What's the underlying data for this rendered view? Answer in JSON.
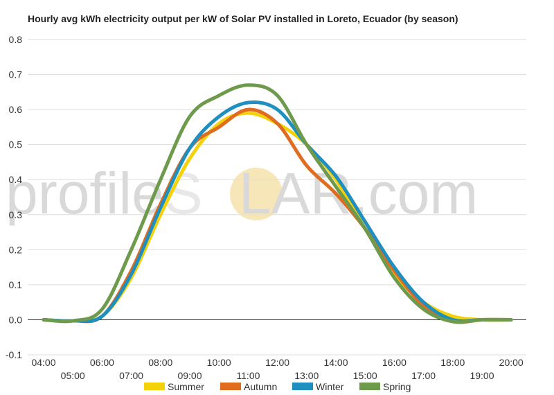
{
  "chart_data": {
    "type": "line",
    "title": "Hourly avg kWh electricity output per kW of Solar PV installed in Loreto, Ecuador (by season)",
    "xlabel": "",
    "ylabel": "",
    "ylim": [
      -0.1,
      0.8
    ],
    "yticks": [
      "-0.1",
      "0.0",
      "0.1",
      "0.2",
      "0.3",
      "0.4",
      "0.5",
      "0.6",
      "0.7",
      "0.8"
    ],
    "x": [
      "04:00",
      "05:00",
      "06:00",
      "07:00",
      "08:00",
      "09:00",
      "10:00",
      "11:00",
      "12:00",
      "13:00",
      "14:00",
      "15:00",
      "16:00",
      "17:00",
      "18:00",
      "19:00",
      "20:00"
    ],
    "grid": true,
    "legend_position": "bottom",
    "series": [
      {
        "name": "Summer",
        "color": "#f5d10a",
        "values": [
          0.0,
          -0.003,
          0.01,
          0.12,
          0.3,
          0.46,
          0.56,
          0.59,
          0.56,
          0.5,
          0.4,
          0.26,
          0.13,
          0.05,
          0.01,
          0.0,
          0.0
        ]
      },
      {
        "name": "Autumn",
        "color": "#e06c1f",
        "values": [
          0.0,
          -0.003,
          0.01,
          0.14,
          0.33,
          0.49,
          0.55,
          0.6,
          0.56,
          0.44,
          0.36,
          0.26,
          0.14,
          0.04,
          -0.005,
          0.0,
          0.0
        ]
      },
      {
        "name": "Winter",
        "color": "#1f8fbf",
        "values": [
          0.0,
          -0.003,
          0.01,
          0.13,
          0.32,
          0.49,
          0.58,
          0.62,
          0.6,
          0.5,
          0.41,
          0.28,
          0.15,
          0.05,
          0.0,
          0.0,
          0.0
        ]
      },
      {
        "name": "Spring",
        "color": "#6e9a4c",
        "values": [
          0.0,
          -0.003,
          0.03,
          0.2,
          0.4,
          0.58,
          0.64,
          0.67,
          0.64,
          0.5,
          0.38,
          0.26,
          0.12,
          0.03,
          -0.005,
          0.0,
          0.0
        ]
      }
    ]
  },
  "watermark": {
    "text_left": "profile",
    "text_s": "S",
    "text_right": "LAR.com",
    "color": "#d9d9d9",
    "sun_color": "#f7e7b8"
  }
}
